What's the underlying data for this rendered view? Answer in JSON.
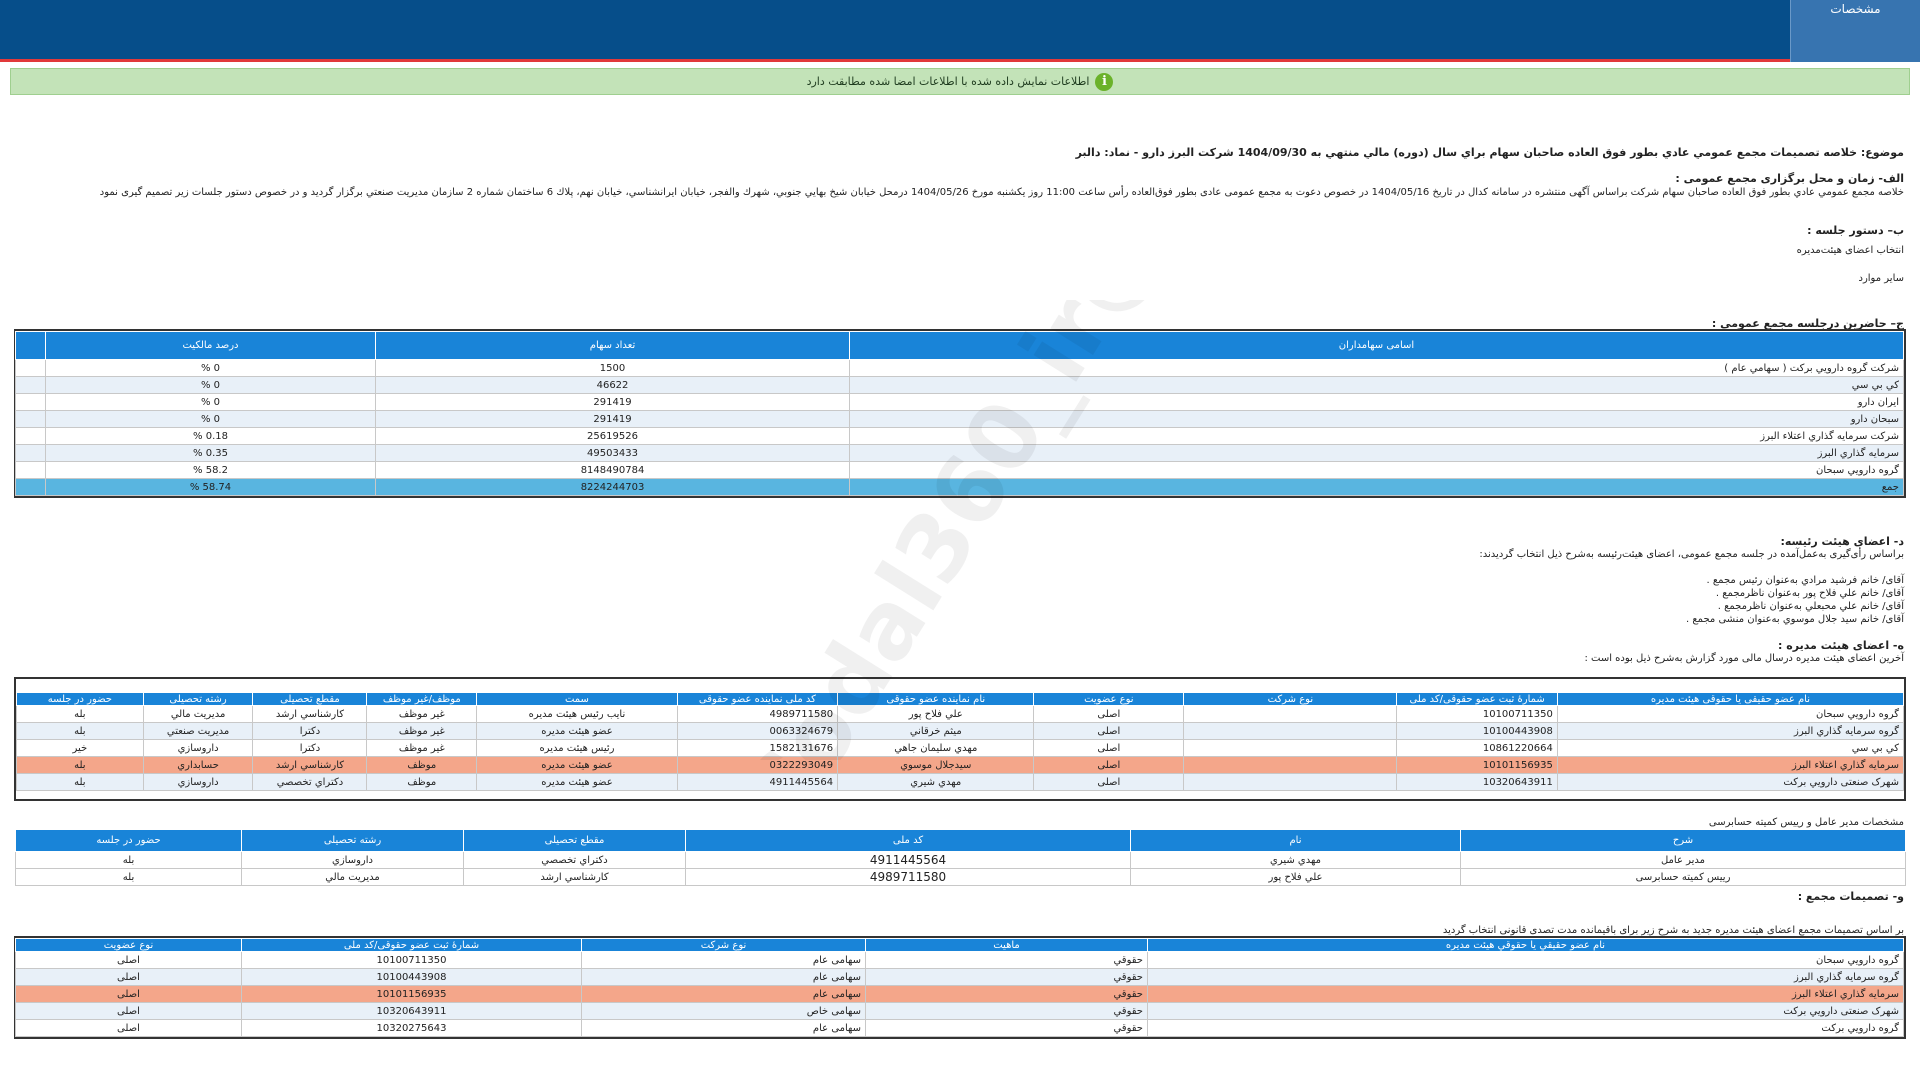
{
  "header": {
    "tab_label": "مشخصات"
  },
  "notice": {
    "text": "اطلاعات نمایش داده شده با اطلاعات امضا شده مطابقت دارد"
  },
  "subject": "موضوع: خلاصه تصمیمات مجمع عمومي عادي بطور فوق العاده صاحبان سهام براي سال (دوره) مالي منتهي به 1404/09/30 شركت البرز دارو - نماد: دالبر",
  "section_a": {
    "title": "الف- زمان و محل برگزاری مجمع عمومی :",
    "text": "خلاصه مجمع عمومي عادي بطور فوق العاده صاحبان سهام شرکت براساس آگهی منتشره در سامانه کدال در تاریخ 1404/05/16 در خصوص دعوت به مجمع عمومی عادی بطور فوق‌العاده رأس ساعت 11:00 روز یکشنبه مورخ 1404/05/26 درمحل  خيابان شيخ بهايي جنوبي، شهرك والفجر، خيابان ايرانشناسي، خيابان نهم، پلاك 6 ساختمان شماره 2 سازمان مديريت صنعتي    برگزار گردید و در خصوص دستور جلسات زیر تصمیم گیری نمود"
  },
  "section_b": {
    "title": "ب– دستور جلسه :",
    "items": [
      "انتخاب اعضای هیئت‌مدیره",
      "سایر موارد"
    ]
  },
  "section_c": {
    "title": "ج– حاضرین درجلسه مجمع عمومی :",
    "headers": [
      "اسامی سهامداران",
      "تعداد سهام",
      "درصد مالکیت"
    ],
    "rows": [
      [
        "شركت گروه دارويي بركت ( سهامي عام )",
        "1500",
        "0 %"
      ],
      [
        "كي بي سي",
        "46622",
        "0 %"
      ],
      [
        "ايران دارو",
        "291419",
        "0 %"
      ],
      [
        "سبحان دارو",
        "291419",
        "0 %"
      ],
      [
        "شركت سرمايه گذاري اعتلاء البرز",
        "25619526",
        "0.18 %"
      ],
      [
        "سرمايه گذاري البرز",
        "49503433",
        "0.35 %"
      ],
      [
        "گروه دارويي سبحان",
        "8148490784",
        "58.2 %"
      ]
    ],
    "total": [
      "جمع",
      "8224244703",
      "58.74 %"
    ]
  },
  "section_d": {
    "title": "د- اعضای هیئت رئیسه:",
    "intro": "براساس رأی‌گیری به‌عمل‌آمده در جلسه مجمع عمومی، اعضای هیئت‌رئیسه به‌شرح ذیل انتخاب گردیدند:",
    "members": [
      "آقای/ خانم   فرشيد مرادي   به‌عنوان رئیس مجمع .",
      "آقای/ خانم   علي فلاح پور   به‌عنوان ناظرمجمع .",
      "آقای/ خانم   علي محبعلي   به‌عنوان ناظرمجمع .",
      "آقای/ خانم   سيد جلال موسوي   به‌عنوان منشی مجمع ."
    ]
  },
  "section_e": {
    "title": "ه- اعضای هیئت مدیره :",
    "intro": "آخرین اعضای هیئت مدیره درسال مالی مورد گزارش به‌شرح ذیل بوده است :",
    "headers": [
      "نام عضو حقیقی یا حقوقی هیئت مدیره",
      "شمارۀ ثبت عضو حقوقی/کد ملی",
      "نوع شرکت",
      "نوع عضویت",
      "نام نماينده عضو حقوقی",
      "کد ملی نماينده عضو حقوقی",
      "سمت",
      "موظف/غیر موظف",
      "مقطع تحصیلی",
      "رشته تحصیلی",
      "حضور در جلسه"
    ],
    "rows": [
      [
        "گروه دارويي سبحان",
        "10100711350",
        "",
        "اصلی",
        "علي فلاح پور",
        "4989711580",
        "نايب رئيس هيئت مديره",
        "غير موظف",
        "كارشناسي ارشد",
        "مديريت مالي",
        "بله"
      ],
      [
        "گروه سرمايه گذاري البرز",
        "10100443908",
        "",
        "اصلی",
        "ميثم خرقاني",
        "0063324679",
        "عضو هيئت مديره",
        "غير موظف",
        "دكترا",
        "مديريت صنعتي",
        "بله"
      ],
      [
        "كي بي سي",
        "10861220664",
        "",
        "اصلی",
        "مهدي سليمان جاهي",
        "1582131676",
        "رئيس هيئت مديره",
        "غير موظف",
        "دكترا",
        "داروسازي",
        "خير"
      ],
      [
        "سرمايه گذاري اعتلاء البرز",
        "10101156935",
        "",
        "اصلی",
        "سيدجلال موسوي",
        "0322293049",
        "عضو هيئت مديره",
        "موظف",
        "كارشناسي ارشد",
        "حسابداري",
        "بله"
      ],
      [
        "شهرک صنعتی دارويي برکت",
        "10320643911",
        "",
        "اصلی",
        "مهدي شيري",
        "4911445564",
        "عضو هيئت مديره",
        "موظف",
        "دكتراي تخصصي",
        "داروسازي",
        "بله"
      ]
    ]
  },
  "section_ceo": {
    "title": "مشخصات مدیر عامل و رییس کمیته حسابرسی",
    "headers": [
      "شرح",
      "نام",
      "کد ملی",
      "مقطع تحصیلی",
      "رشته تحصیلی",
      "حضور در جلسه"
    ],
    "rows": [
      [
        "مدیر عامل",
        "مهدي شيري",
        "4911445564",
        "دكتراي تخصصي",
        "داروسازي",
        "بله"
      ],
      [
        "رییس کمیته حسابرسی",
        "علي فلاح پور",
        "4989711580",
        "كارشناسي ارشد",
        "مديريت مالي",
        "بله"
      ]
    ]
  },
  "section_f": {
    "title": "و- تصمیمات مجمع :",
    "intro": "بر اساس تصمیمات مجمع اعضای هیئت مدیره جدید به شرح زیر برای باقیمانده مدت تصدی قانونی انتخاب گردید",
    "headers": [
      "نام عضو حقيقي يا حقوقي هيئت مديره",
      "ماهيت",
      "نوع شركت",
      "شمارۀ ثبت عضو حقوقی/کد ملی",
      "نوع عضويت"
    ],
    "rows": [
      [
        "گروه دارويي سبحان",
        "حقوقي",
        "سهامی عام",
        "10100711350",
        "اصلی"
      ],
      [
        "گروه سرمايه گذاري البرز",
        "حقوقي",
        "سهامی عام",
        "10100443908",
        "اصلی"
      ],
      [
        "سرمايه گذاري اعتلاء البرز",
        "حقوقي",
        "سهامی عام",
        "10101156935",
        "اصلی"
      ],
      [
        "شهرک صنعتی دارويي برکت",
        "حقوقي",
        "سهامی خاص",
        "10320643911",
        "اصلی"
      ],
      [
        "گروه دارويي برکت",
        "حقوقي",
        "سهامی عام",
        "10320275643",
        "اصلی"
      ]
    ]
  },
  "watermark": {
    "text": "@Codal360_ir"
  },
  "colors": {
    "header": "#064e8a",
    "table_header": "#1984d8",
    "highlight": "#f4a68a",
    "total": "#59b5e0",
    "notice": "#c3e3b8"
  }
}
